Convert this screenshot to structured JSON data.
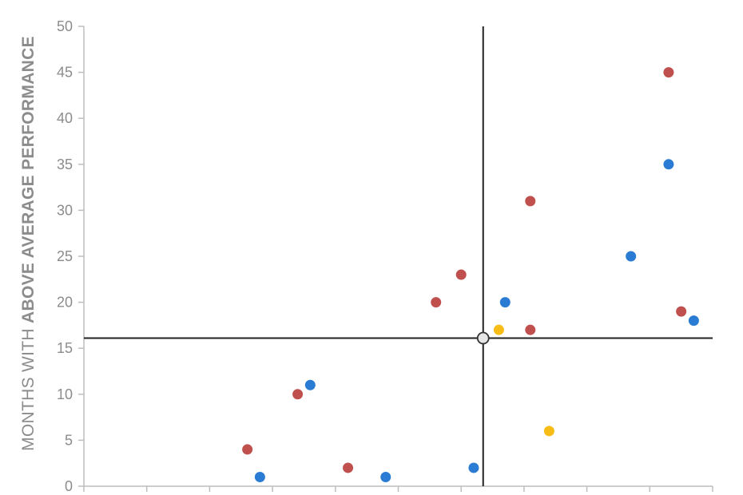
{
  "chart_data": {
    "type": "scatter",
    "ylabel_prefix": "MONTHS WITH ",
    "ylabel_bold": "ABOVE AVERAGE PERFORMANCE",
    "ylim": [
      0,
      50
    ],
    "yticks": [
      "0",
      "5",
      "10",
      "15",
      "20",
      "25",
      "30",
      "35",
      "40",
      "45",
      "50"
    ],
    "xlim": [
      0,
      10
    ],
    "xtick_count": 11,
    "grid": false,
    "crosshair": {
      "x": 6.35,
      "y": 16.1
    },
    "colors": {
      "red": "#c0504d",
      "blue": "#2a7bd3",
      "yellow": "#f7bd16",
      "axis": "#bdbdbd",
      "crosshair": "#222222"
    },
    "series": [
      {
        "color": "red",
        "points": [
          [
            2.6,
            4
          ],
          [
            3.4,
            10
          ],
          [
            4.2,
            2
          ],
          [
            5.6,
            20
          ],
          [
            6.0,
            23
          ],
          [
            7.1,
            31
          ],
          [
            7.1,
            17
          ],
          [
            9.3,
            45
          ],
          [
            9.5,
            19
          ]
        ]
      },
      {
        "color": "blue",
        "points": [
          [
            2.8,
            1
          ],
          [
            3.6,
            11
          ],
          [
            4.8,
            1
          ],
          [
            6.2,
            2
          ],
          [
            6.7,
            20
          ],
          [
            8.7,
            25
          ],
          [
            9.3,
            35
          ],
          [
            9.7,
            18
          ]
        ]
      },
      {
        "color": "yellow",
        "points": [
          [
            6.6,
            17
          ],
          [
            7.4,
            6
          ]
        ]
      }
    ]
  }
}
